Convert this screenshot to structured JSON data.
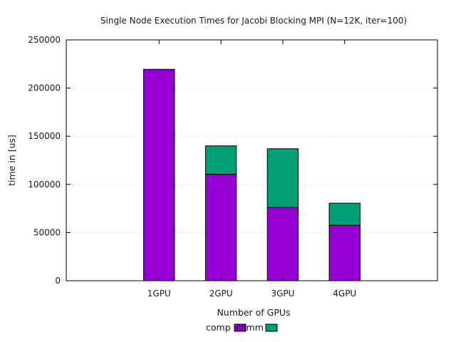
{
  "chart_data": {
    "type": "bar",
    "stacked": true,
    "title": "Single Node Execution Times for Jacobi Blocking MPI  (N=12K, iter=100)",
    "xlabel": "Number of GPUs",
    "ylabel": "time in [us]",
    "categories": [
      "1GPU",
      "2GPU",
      "3GPU",
      "4GPU"
    ],
    "series": [
      {
        "name": "comp",
        "color": "#9400d3",
        "values": [
          219500,
          110500,
          76000,
          57500
        ]
      },
      {
        "name": "comm",
        "color": "#009e73",
        "values": [
          0,
          29500,
          61000,
          23000
        ]
      }
    ],
    "ylim": [
      0,
      250000
    ],
    "yticks": [
      "0",
      "50000",
      "100000",
      "150000",
      "200000",
      "250000"
    ],
    "grid": true,
    "legend_position": "bottom-center"
  }
}
